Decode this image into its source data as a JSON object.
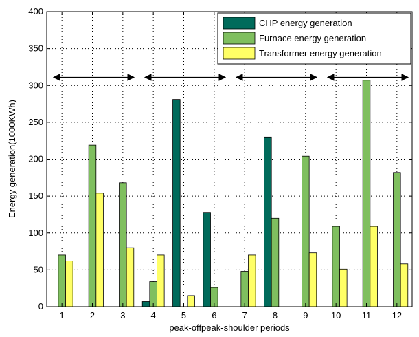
{
  "chart_data": {
    "type": "bar",
    "title": "",
    "xlabel": "peak-offpeak-shoulder periods",
    "ylabel": "Energy generation(1000KWh)",
    "categories": [
      "1",
      "2",
      "3",
      "4",
      "5",
      "6",
      "7",
      "8",
      "9",
      "10",
      "11",
      "12"
    ],
    "ylim": [
      0,
      400
    ],
    "yticks": [
      "0",
      "50",
      "100",
      "150",
      "200",
      "250",
      "300",
      "350",
      "400"
    ],
    "grid": true,
    "legend_position": "top-right",
    "series": [
      {
        "name": "CHP energy generation",
        "color": "#006b5b",
        "values": [
          0,
          0,
          0,
          7,
          281,
          128,
          0,
          230,
          0,
          0,
          0,
          0
        ]
      },
      {
        "name": "Furnace energy generation",
        "color": "#7fbf5f",
        "values": [
          70,
          219,
          168,
          34,
          0,
          26,
          48,
          120,
          204,
          109,
          307,
          182
        ]
      },
      {
        "name": "Transformer energy generation",
        "color": "#ffff66",
        "values": [
          62,
          154,
          80,
          70,
          15,
          0,
          70,
          0,
          73,
          51,
          109,
          58
        ]
      }
    ],
    "annotations": [
      {
        "type": "double-arrow",
        "x_from": 0.5,
        "x_to": 3.5,
        "y": 311
      },
      {
        "type": "double-arrow",
        "x_from": 3.5,
        "x_to": 6.5,
        "y": 311
      },
      {
        "type": "double-arrow",
        "x_from": 6.5,
        "x_to": 9.5,
        "y": 311
      },
      {
        "type": "double-arrow",
        "x_from": 9.5,
        "x_to": 12.5,
        "y": 311
      }
    ]
  }
}
